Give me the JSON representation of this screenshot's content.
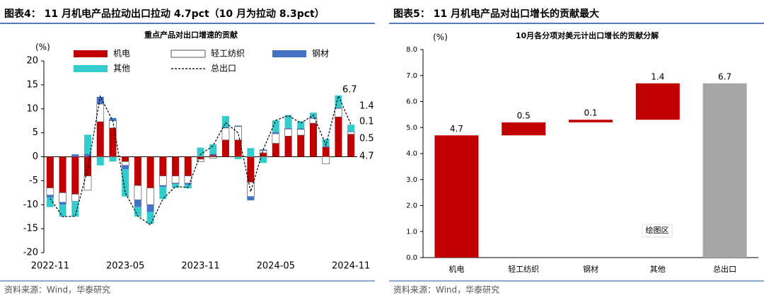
{
  "chart_data": [
    {
      "type": "bar",
      "stacked": true,
      "figure_title": "图表4： 11 月机电产品拉动出口拉动 4.7pct（10 月为拉动 8.3pct）",
      "title": "重点产品对出口增速的贡献",
      "y_label": "(%)",
      "source": "资料来源：Wind，华泰研究",
      "categories": [
        "2022-11",
        null,
        null,
        null,
        null,
        null,
        "2023-05",
        null,
        null,
        null,
        null,
        null,
        "2023-11",
        null,
        null,
        null,
        null,
        null,
        "2024-05",
        null,
        null,
        null,
        null,
        null,
        "2024-11"
      ],
      "series": [
        {
          "name": "机电",
          "color": "#c00000",
          "values": [
            -6.5,
            -7.5,
            -7.8,
            -4,
            7.3,
            6,
            -1,
            -6,
            -6.5,
            -4,
            -4,
            -4,
            -0.5,
            0.3,
            3.5,
            3.5,
            -5.3,
            0.8,
            2.8,
            4.3,
            4.5,
            7,
            2,
            8.3,
            4.7
          ]
        },
        {
          "name": "轻工纺织",
          "color": "#ffffff",
          "values": [
            -1.5,
            -2,
            -1.5,
            -3,
            3.7,
            1.5,
            -0.8,
            -3,
            -3.5,
            -2,
            -1.5,
            -1.5,
            -0.5,
            -0.3,
            2.5,
            2.8,
            -3,
            0.5,
            2,
            1.5,
            1.2,
            1,
            -1.5,
            1.8,
            0.5
          ]
        },
        {
          "name": "钢材",
          "color": "#4472c4",
          "values": [
            -0.5,
            -0.5,
            0.5,
            0.6,
            1.5,
            0.6,
            -0.8,
            -1.5,
            -1.5,
            -0.3,
            -0.2,
            -0.3,
            0.1,
            0.3,
            0.2,
            0.2,
            -0.8,
            0.2,
            0.3,
            0.2,
            0.2,
            0.2,
            0.2,
            0.2,
            0.1
          ]
        },
        {
          "name": "其他",
          "color": "#33cccc",
          "values": [
            -2,
            -2.5,
            -3.2,
            4,
            -1.8,
            -1,
            -5.7,
            -2,
            -2.5,
            -2.5,
            -0.8,
            -0.8,
            1.8,
            2,
            2.3,
            -0.5,
            1.8,
            -1.3,
            2.5,
            2.7,
            1.5,
            1,
            1.5,
            2.5,
            1.4
          ]
        },
        {
          "name": "总出口",
          "type": "line",
          "color": "#000000",
          "dash": true,
          "values": [
            -8.7,
            -12.5,
            -12.4,
            -2.5,
            12.6,
            7.5,
            -7.5,
            -12.4,
            -14.2,
            -8.8,
            -6.2,
            -6.4,
            0.5,
            2.3,
            7.1,
            5,
            -7.3,
            1.5,
            7.6,
            8.6,
            7,
            8.7,
            2.4,
            12.7,
            6.7
          ]
        }
      ],
      "label_colors": [
        "#c00000",
        "#000000",
        "#1f4e9c",
        "#1aa3d9",
        "#000000"
      ],
      "ylim": [
        -20,
        20
      ],
      "yticks": [
        -20,
        -15,
        -10,
        -5,
        0,
        5,
        10,
        15,
        20
      ]
    },
    {
      "type": "waterfall",
      "figure_title": "图表5： 11 月机电产品对出口增长的贡献最大",
      "title": "10月各分项对美元计出口增长的贡献分解",
      "y_label": "(%)",
      "source": "资料来源：Wind，华泰研究",
      "annotation": "绘图区",
      "categories": [
        "机电",
        "轻工纺织",
        "钢材",
        "其他",
        "总出口"
      ],
      "values": [
        4.7,
        0.5,
        0.1,
        1.4,
        6.7
      ],
      "total_index": 4,
      "color": "#c00000",
      "total_color": "#a6a6a6",
      "label_color": "#c00000",
      "ylim": [
        0,
        8
      ],
      "yticks": [
        {
          "value": 0,
          "label": "0.0"
        },
        {
          "value": 1,
          "label": "1.0"
        },
        {
          "value": 2,
          "label": "2.0"
        },
        {
          "value": 3,
          "label": "3.0"
        },
        {
          "value": 4,
          "label": "4.0"
        },
        {
          "value": 5,
          "label": "5.0"
        },
        {
          "value": 6,
          "label": "6.0"
        },
        {
          "value": 7,
          "label": "7.0"
        },
        {
          "value": 8,
          "label": "8.0"
        }
      ]
    }
  ]
}
